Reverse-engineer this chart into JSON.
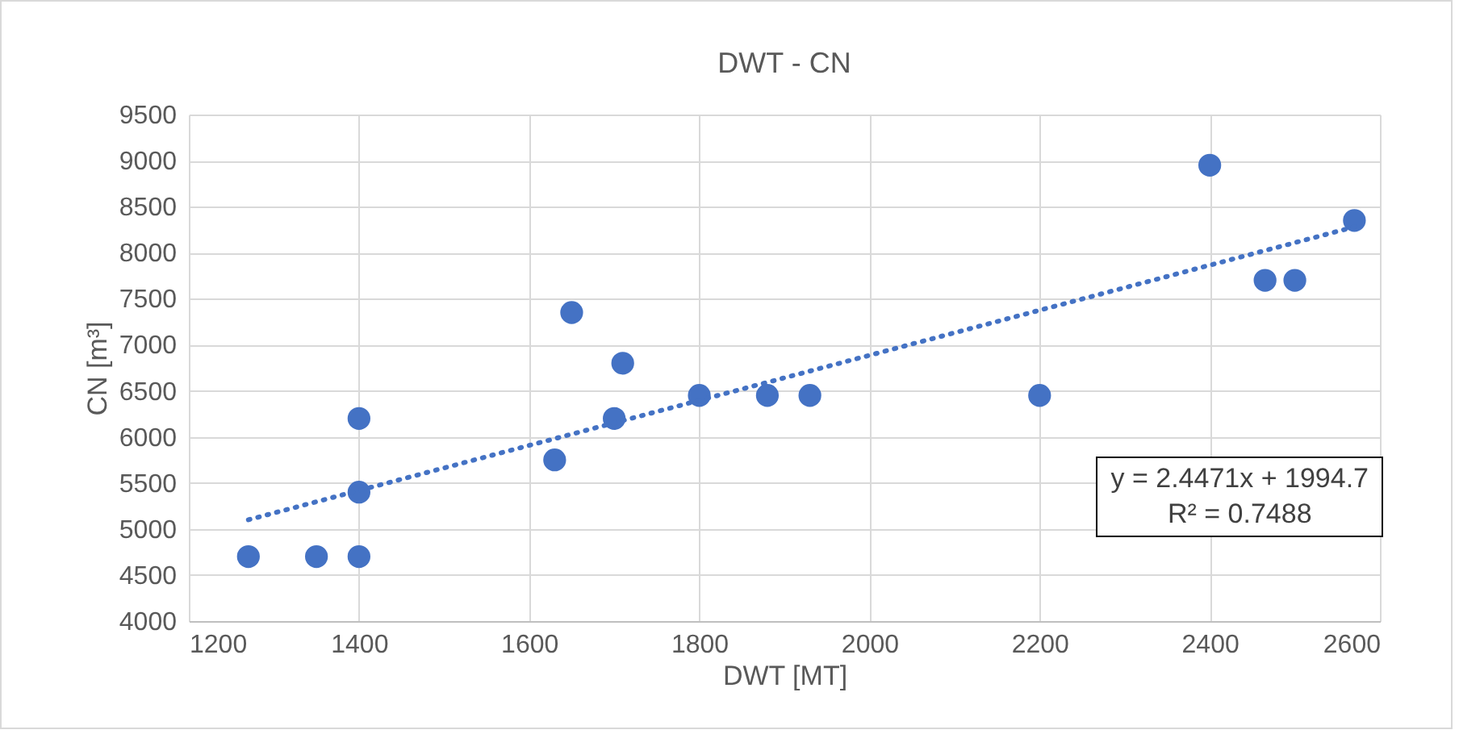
{
  "chart_data": {
    "type": "scatter",
    "title": "DWT - CN",
    "xlabel": "DWT [MT]",
    "ylabel": "CN [m³]",
    "xlim": [
      1200,
      2600
    ],
    "xticks": [
      1200,
      1400,
      1600,
      1800,
      2000,
      2200,
      2400,
      2600
    ],
    "ylim": [
      4000,
      9500
    ],
    "yticks": [
      4000,
      4500,
      5000,
      5500,
      6000,
      6500,
      7000,
      7500,
      8000,
      8500,
      9000,
      9500
    ],
    "grid": true,
    "annotations": [
      "y = 2.4471x + 1994.7",
      "R² = 0.7488"
    ],
    "series": [
      {
        "color": "#4472c4",
        "marker": "circle",
        "x": [
          1270,
          1350,
          1400,
          1400,
          1400,
          1630,
          1650,
          1700,
          1710,
          1800,
          1880,
          1930,
          2200,
          2400,
          2465,
          2500,
          2570
        ],
        "values": [
          4700,
          4700,
          4700,
          5400,
          6200,
          5750,
          7350,
          6200,
          6800,
          6450,
          6450,
          6450,
          6450,
          8950,
          7700,
          7700,
          8350
        ]
      },
      {
        "type": "line",
        "color": "#4472c4",
        "line_style": "dotted",
        "x": [
          1270,
          2570
        ],
        "values": [
          5100,
          8280
        ]
      }
    ]
  }
}
